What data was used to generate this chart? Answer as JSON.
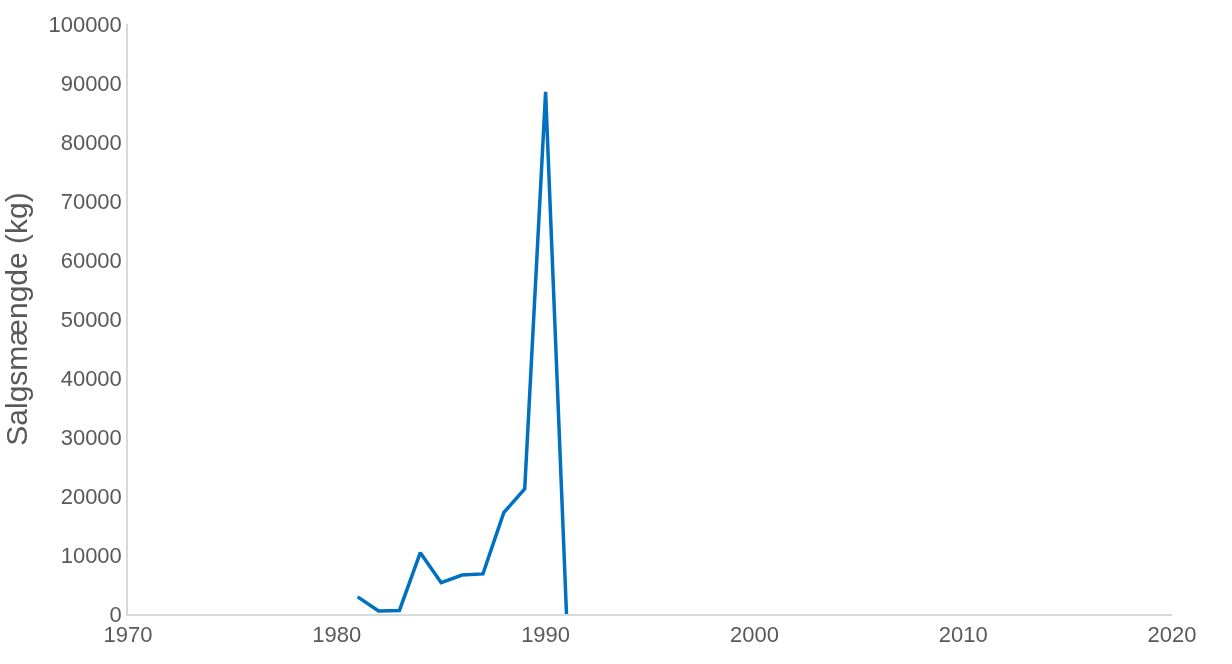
{
  "chart_data": {
    "type": "line",
    "ylabel": "Salgsmængde (kg)",
    "x": [
      1981,
      1982,
      1983,
      1984,
      1985,
      1986,
      1987,
      1988,
      1989,
      1990,
      1991
    ],
    "series": [
      {
        "color": "#0070c0",
        "values": [
          2900,
          500,
          600,
          10400,
          5300,
          6600,
          6800,
          17200,
          21200,
          88500,
          0
        ]
      }
    ],
    "xlim": [
      1970,
      2020
    ],
    "xticks": [
      1970,
      1980,
      1990,
      2000,
      2010,
      2020
    ],
    "ylim": [
      0,
      100000
    ],
    "yticks": [
      0,
      10000,
      20000,
      30000,
      40000,
      50000,
      60000,
      70000,
      80000,
      90000,
      100000
    ],
    "legend": false,
    "marker": "none",
    "line_style": "solid"
  }
}
